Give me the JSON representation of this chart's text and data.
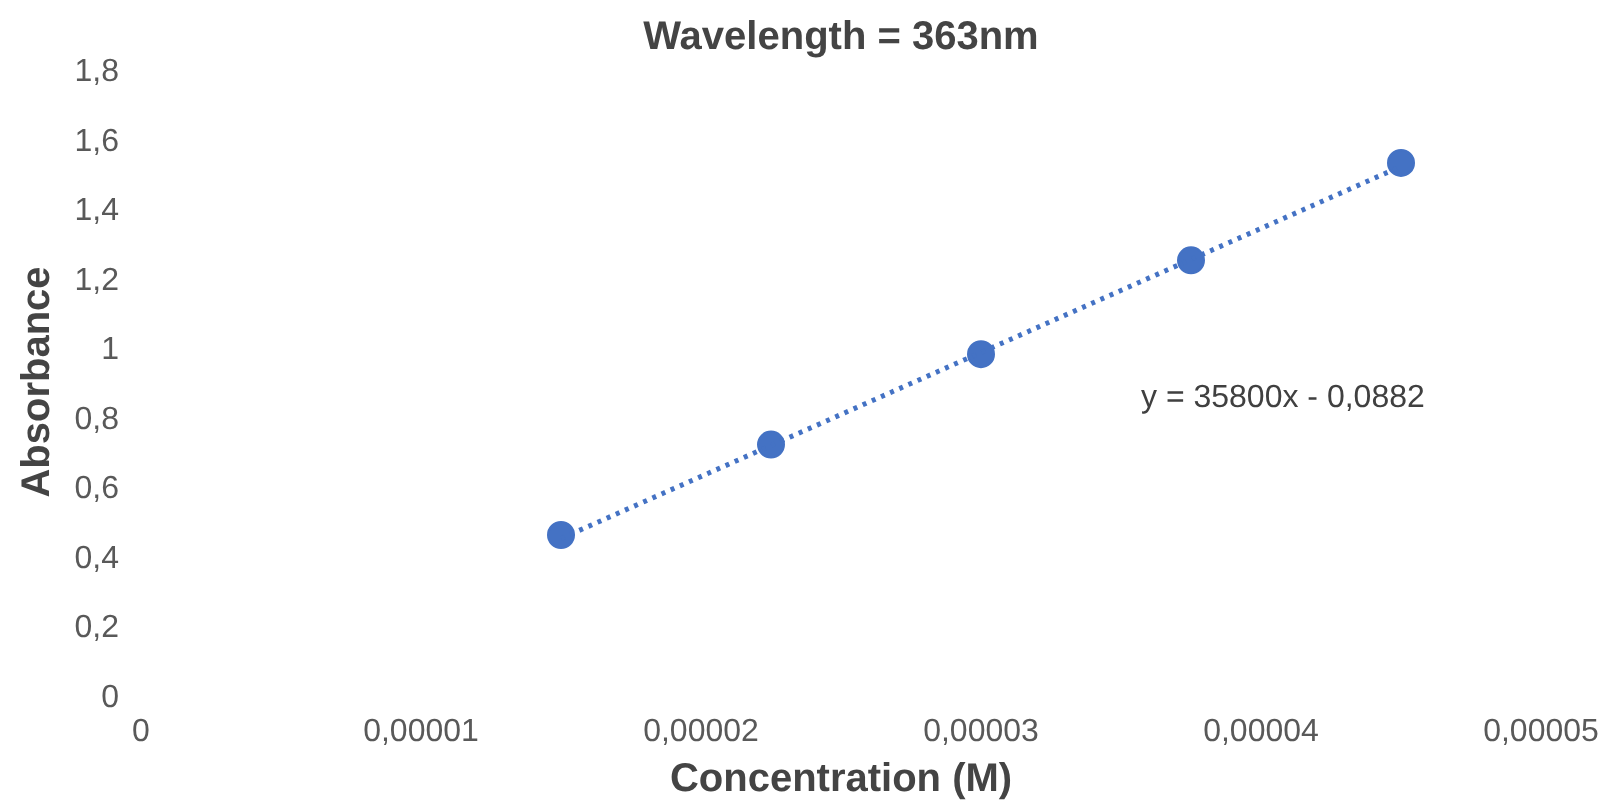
{
  "chart_data": {
    "type": "scatter",
    "title": "Wavelength = 363nm",
    "xlabel": "Concentration (M)",
    "ylabel": "Absorbance",
    "annotations": [
      "y = 35800x - 0,0882"
    ],
    "xlim": [
      0,
      5e-05
    ],
    "ylim": [
      0,
      1.8
    ],
    "xticks": [
      0,
      {
        "value": 1e-05,
        "label": "0,00001"
      },
      {
        "value": 2e-05,
        "label": "0,00002"
      },
      {
        "value": 3e-05,
        "label": "0,00003"
      },
      {
        "value": 4e-05,
        "label": "0,00004"
      },
      {
        "value": 5e-05,
        "label": "0,00005"
      }
    ],
    "yticks": [
      0,
      {
        "value": 0.2,
        "label": "0,2"
      },
      {
        "value": 0.4,
        "label": "0,4"
      },
      {
        "value": 0.6,
        "label": "0,6"
      },
      {
        "value": 0.8,
        "label": "0,8"
      },
      1,
      {
        "value": 1.2,
        "label": "1,2"
      },
      {
        "value": 1.4,
        "label": "1,4"
      },
      {
        "value": 1.6,
        "label": "1,6"
      },
      {
        "value": 1.8,
        "label": "1,8"
      }
    ],
    "grid": false,
    "marker": "circle",
    "series": [
      {
        "color": "#4472c4",
        "x": [
          1.5e-05,
          2.25e-05,
          3e-05,
          3.75e-05,
          4.5e-05
        ],
        "values": [
          0.46,
          0.72,
          0.98,
          1.25,
          1.53
        ]
      },
      {
        "type": "line",
        "color": "#4472c4",
        "line_style": "dotted",
        "marker": "none",
        "x": [
          1.5e-05,
          4.5e-05
        ],
        "values": [
          0.45,
          1.52
        ]
      }
    ]
  }
}
